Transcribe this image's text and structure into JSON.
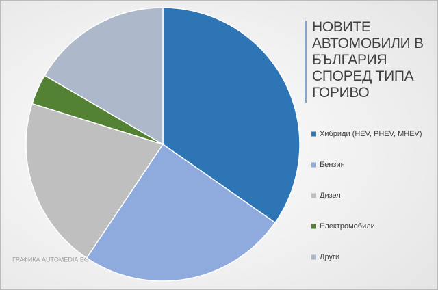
{
  "chart_data": {
    "type": "pie",
    "title": "НОВИТЕ АВТОМОБИЛИ В БЪЛГАРИЯ СПОРЕД ТИПА ГОРИВО",
    "categories": [
      "Хибриди (HEV, PHEV, MHEV)",
      "Бензин",
      "Дизел",
      "Електромобили",
      "Други"
    ],
    "values": [
      34.7,
      24.7,
      20.4,
      3.6,
      16.6
    ],
    "colors": [
      "#2e75b6",
      "#8faadc",
      "#bfbfbf",
      "#548235",
      "#adb9ca"
    ],
    "legend": "right",
    "credit": "ГРАФИКА AUTOMEDIA.BG"
  }
}
